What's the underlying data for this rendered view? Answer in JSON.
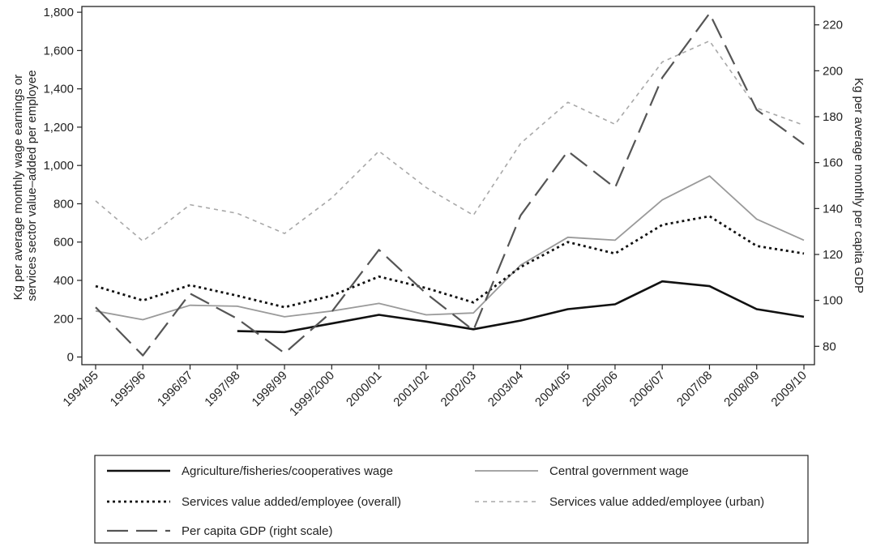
{
  "chart_data": {
    "type": "line",
    "categories": [
      "1994/95",
      "1995/96",
      "1996/97",
      "1997/98",
      "1998/99",
      "1999/2000",
      "2000/01",
      "2001/02",
      "2002/03",
      "2003/04",
      "2004/05",
      "2005/06",
      "2006/07",
      "2007/08",
      "2008/09",
      "2009/10"
    ],
    "left_axis": {
      "label_lines": [
        "Kg per average monthly wage earnings or",
        "services sector value–added per employee"
      ],
      "ylim": [
        -40,
        1830
      ],
      "ticks": [
        0,
        200,
        400,
        600,
        800,
        1000,
        1200,
        1400,
        1600,
        1800
      ],
      "tick_labels": [
        "0",
        "200",
        "400",
        "600",
        "800",
        "1,000",
        "1,200",
        "1,400",
        "1,600",
        "1,800"
      ]
    },
    "right_axis": {
      "label": "Kg per average monthly per capita GDP",
      "ylim": [
        72,
        228
      ],
      "ticks": [
        80,
        100,
        120,
        140,
        160,
        180,
        200,
        220
      ],
      "tick_labels": [
        "80",
        "100",
        "120",
        "140",
        "160",
        "180",
        "200",
        "220"
      ]
    },
    "series": [
      {
        "name": "Agriculture/fisheries/cooperatives wage",
        "axis": "left",
        "style": "solid-thick",
        "color": "#111111",
        "values": [
          null,
          null,
          null,
          135,
          130,
          175,
          220,
          185,
          145,
          190,
          250,
          275,
          395,
          370,
          250,
          210
        ]
      },
      {
        "name": "Central government wage",
        "axis": "left",
        "style": "solid-thin",
        "color": "#9a9a9a",
        "values": [
          240,
          195,
          270,
          265,
          210,
          240,
          280,
          220,
          230,
          480,
          625,
          610,
          820,
          945,
          720,
          610
        ]
      },
      {
        "name": "Services value added/employee (overall)",
        "axis": "left",
        "style": "dotted",
        "color": "#111111",
        "values": [
          370,
          295,
          375,
          320,
          260,
          320,
          420,
          360,
          285,
          470,
          600,
          540,
          690,
          735,
          580,
          540
        ]
      },
      {
        "name": "Services value added/employee (urban)",
        "axis": "left",
        "style": "short-dash",
        "color": "#a8a8a8",
        "values": [
          815,
          605,
          795,
          750,
          645,
          830,
          1075,
          885,
          740,
          1115,
          1330,
          1215,
          1540,
          1650,
          1300,
          1210
        ]
      },
      {
        "name": "Per capita GDP (right scale)",
        "axis": "right",
        "style": "long-dash",
        "color": "#555555",
        "values": [
          97,
          76,
          103,
          92,
          77,
          95,
          122,
          103,
          87,
          137,
          165,
          149,
          197,
          225,
          183,
          168
        ]
      }
    ],
    "legend_position": "bottom",
    "grid": false
  }
}
